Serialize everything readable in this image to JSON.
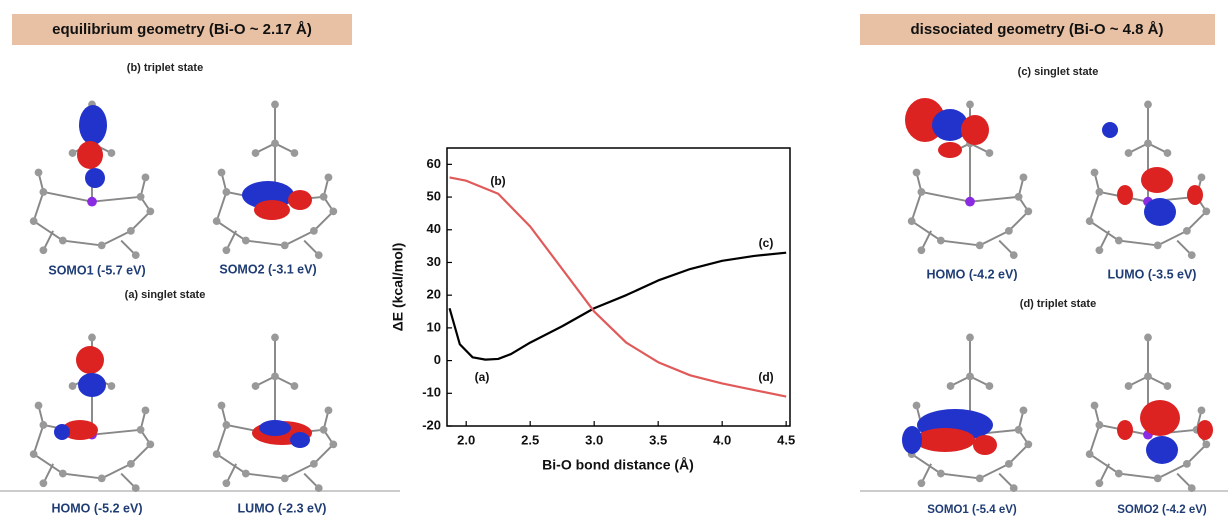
{
  "labels": {
    "left_header": "equilibrium geometry (Bi-O ~ 2.17 Å)",
    "left_top_state": "(b) triplet state",
    "left_top_orbitals": [
      "SOMO1 (-5.7 eV)",
      "SOMO2 (-3.1 eV)"
    ],
    "left_bottom_state": "(a) singlet state",
    "left_bottom_orbitals": [
      "HOMO (-5.2 eV)",
      "LUMO (-2.3 eV)"
    ],
    "right_header": "dissociated geometry (Bi-O ~ 4.8 Å)",
    "right_top_state": "(c) singlet state",
    "right_top_orbitals": [
      "HOMO (-4.2 eV)",
      "LUMO (-3.5 eV)"
    ],
    "right_bottom_state": "(d) triplet state",
    "right_bottom_orbitals": [
      "SOMO1 (-5.4 eV)",
      "SOMO2 (-4.2 eV)"
    ]
  },
  "chart_data": {
    "type": "line",
    "x_label": "Bi-O bond distance (Å)",
    "y_label": "ΔE (kcal/mol)",
    "xlim": [
      1.85,
      4.53
    ],
    "ylim": [
      -20,
      65
    ],
    "xticks": [
      {
        "value": 2,
        "label": "2.0"
      },
      2.5,
      {
        "value": 3,
        "label": "3.0"
      },
      3.5,
      {
        "value": 4,
        "label": "4.0"
      },
      4.5
    ],
    "yticks": [
      -20,
      -10,
      0,
      10,
      20,
      30,
      40,
      50,
      60
    ],
    "series": [
      {
        "color": "#000000",
        "x": [
          1.87,
          1.95,
          2.05,
          2.15,
          2.25,
          2.35,
          2.5,
          2.75,
          3.0,
          3.25,
          3.5,
          3.75,
          4.0,
          4.25,
          4.5
        ],
        "values": [
          16,
          5,
          1,
          0.3,
          0.5,
          2,
          5.5,
          10.5,
          16,
          20,
          24.5,
          28,
          30.5,
          32,
          33
        ]
      },
      {
        "color": "#e05a5a",
        "x": [
          1.87,
          2.0,
          2.25,
          2.5,
          2.75,
          3.0,
          3.25,
          3.5,
          3.75,
          4.0,
          4.25,
          4.5
        ],
        "values": [
          56,
          55,
          51,
          41,
          28,
          15,
          5.5,
          -0.5,
          -4.5,
          -7,
          -9,
          -11
        ]
      }
    ],
    "annotations": [
      "(a)",
      "(b)",
      "(c)",
      "(d)"
    ]
  }
}
